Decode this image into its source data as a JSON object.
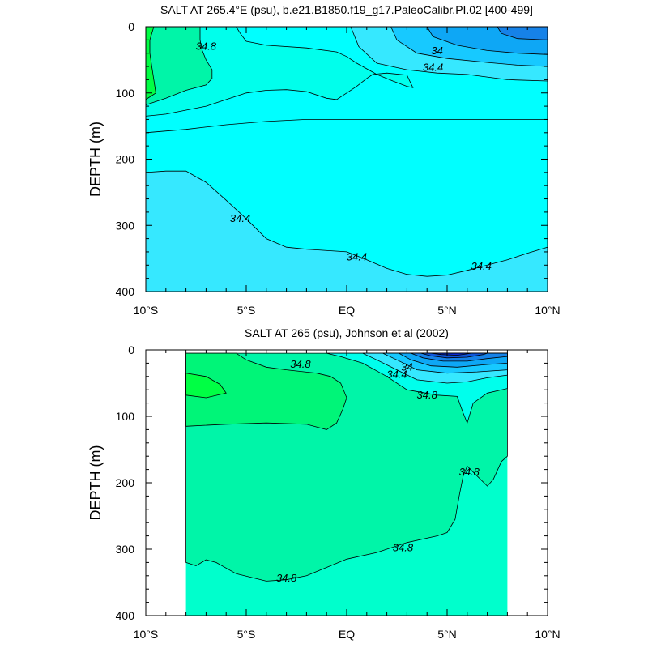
{
  "chart_data": [
    {
      "type": "contour",
      "title": "SALT AT 265.4°E (psu), b.e21.B1850.f19_g17.PaleoCalibr.PI.02 [400-499]",
      "ylabel": "DEPTH (m)",
      "xlabel": "",
      "x_tick_labels": [
        "10°S",
        "5°S",
        "EQ",
        "5°N",
        "10°N"
      ],
      "x_tick_values": [
        -10,
        -5,
        0,
        5,
        10
      ],
      "y_tick_labels": [
        "0",
        "100",
        "200",
        "300",
        "400"
      ],
      "y_tick_values": [
        0,
        100,
        200,
        300,
        400
      ],
      "xlim": [
        -10,
        10
      ],
      "ylim": [
        400,
        0
      ],
      "y_inverted": true,
      "contour_labels": [
        {
          "text": "34.8",
          "lat": -7.0,
          "depth": 30
        },
        {
          "text": "34",
          "lat": 4.5,
          "depth": 37
        },
        {
          "text": "34.4",
          "lat": 4.3,
          "depth": 62
        },
        {
          "text": "34.4",
          "lat": -5.3,
          "depth": 290
        },
        {
          "text": "34.4",
          "lat": 0.5,
          "depth": 348
        },
        {
          "text": "34.4",
          "lat": 6.7,
          "depth": 362
        }
      ],
      "fill_regions": [
        {
          "salinity": 34.4,
          "color": "#36e8ff",
          "polygon": [
            [
              -10,
              220
            ],
            [
              -9,
              218
            ],
            [
              -8,
              218
            ],
            [
              -7,
              235
            ],
            [
              -6,
              262
            ],
            [
              -5,
              290
            ],
            [
              -4,
              320
            ],
            [
              -3,
              333
            ],
            [
              -2,
              336
            ],
            [
              0,
              340
            ],
            [
              1,
              352
            ],
            [
              2,
              365
            ],
            [
              3,
              374
            ],
            [
              4,
              377
            ],
            [
              5,
              375
            ],
            [
              6,
              368
            ],
            [
              7,
              360
            ],
            [
              8,
              352
            ],
            [
              9,
              342
            ],
            [
              10,
              333
            ],
            [
              10,
              400
            ],
            [
              -10,
              400
            ]
          ]
        },
        {
          "salinity": 34.6,
          "color": "#00ffec",
          "polygon": [
            [
              -10,
              135
            ],
            [
              -9,
              132
            ],
            [
              -8,
              126
            ],
            [
              -7,
              120
            ],
            [
              -6,
              110
            ],
            [
              -5,
              100
            ],
            [
              -4,
              96
            ],
            [
              -3,
              95
            ],
            [
              -2,
              98
            ],
            [
              -1,
              108
            ],
            [
              -0.5,
              110
            ],
            [
              0,
              100
            ],
            [
              0.5,
              90
            ],
            [
              1,
              78
            ],
            [
              1.3,
              72
            ],
            [
              2,
              70
            ],
            [
              3,
              73
            ],
            [
              3.2,
              86
            ],
            [
              3.3,
              92
            ],
            [
              3.0,
              90
            ],
            [
              2.3,
              82
            ],
            [
              1.5,
              72
            ],
            [
              0.5,
              55
            ],
            [
              0,
              45
            ],
            [
              -0.5,
              38
            ],
            [
              -2,
              32
            ],
            [
              -4,
              28
            ],
            [
              -5,
              22
            ],
            [
              -5.3,
              10
            ],
            [
              -5.5,
              0
            ],
            [
              -10,
              0
            ]
          ]
        },
        {
          "salinity": 34.8,
          "color": "#00f5a8",
          "polygon": [
            [
              -10,
              118
            ],
            [
              -9,
              108
            ],
            [
              -8,
              96
            ],
            [
              -7,
              88
            ],
            [
              -6.7,
              78
            ],
            [
              -6.7,
              65
            ],
            [
              -7,
              50
            ],
            [
              -7.2,
              35
            ],
            [
              -7.3,
              20
            ],
            [
              -7.3,
              0
            ],
            [
              -10,
              0
            ]
          ]
        },
        {
          "salinity": 35.0,
          "color": "#00ff44",
          "polygon": [
            [
              -10,
              110
            ],
            [
              -9.5,
              100
            ],
            [
              -9.6,
              80
            ],
            [
              -9.7,
              60
            ],
            [
              -9.8,
              40
            ],
            [
              -9.8,
              20
            ],
            [
              -9.6,
              0
            ],
            [
              -10,
              0
            ]
          ]
        },
        {
          "salinity": 34.4,
          "color": "#36e8ff",
          "polygon": [
            [
              0.2,
              0
            ],
            [
              0.6,
              30
            ],
            [
              1.5,
              55
            ],
            [
              3,
              65
            ],
            [
              4.5,
              70
            ],
            [
              6,
              72
            ],
            [
              8,
              80
            ],
            [
              10,
              82
            ],
            [
              10,
              0
            ]
          ]
        },
        {
          "salinity": 34.2,
          "color": "#17c9ff",
          "polygon": [
            [
              2.2,
              0
            ],
            [
              2.5,
              20
            ],
            [
              3.5,
              40
            ],
            [
              5,
              48
            ],
            [
              7,
              54
            ],
            [
              8.5,
              58
            ],
            [
              10,
              60
            ],
            [
              10,
              0
            ]
          ]
        },
        {
          "salinity": 34.0,
          "color": "#0ea7f5",
          "polygon": [
            [
              4,
              0
            ],
            [
              4.3,
              15
            ],
            [
              5.5,
              28
            ],
            [
              7,
              36
            ],
            [
              8.5,
              40
            ],
            [
              10,
              42
            ],
            [
              10,
              0
            ]
          ]
        },
        {
          "salinity": 33.8,
          "color": "#1682e8",
          "polygon": [
            [
              7.5,
              0
            ],
            [
              7.7,
              10
            ],
            [
              8.5,
              18
            ],
            [
              10,
              20
            ],
            [
              10,
              0
            ]
          ]
        }
      ],
      "extra_lines": [
        [
          [
            -10,
            160
          ],
          [
            -8,
            155
          ],
          [
            -6,
            148
          ],
          [
            -4,
            143
          ],
          [
            -2,
            140
          ],
          [
            0,
            140
          ],
          [
            2,
            140
          ],
          [
            4,
            140
          ],
          [
            6,
            140
          ],
          [
            8,
            140
          ],
          [
            10,
            140
          ]
        ]
      ]
    },
    {
      "type": "contour",
      "title": "SALT AT 265 (psu), Johnson et al (2002)",
      "ylabel": "DEPTH (m)",
      "xlabel": "",
      "x_tick_labels": [
        "10°S",
        "5°S",
        "EQ",
        "5°N",
        "10°N"
      ],
      "x_tick_values": [
        -10,
        -5,
        0,
        5,
        10
      ],
      "y_tick_labels": [
        "0",
        "100",
        "200",
        "300",
        "400"
      ],
      "y_tick_values": [
        0,
        100,
        200,
        300,
        400
      ],
      "xlim": [
        -10,
        10
      ],
      "ylim": [
        400,
        0
      ],
      "y_inverted": true,
      "data_extent": {
        "lat": [
          -8,
          8
        ],
        "depth": [
          5,
          400
        ]
      },
      "contour_labels": [
        {
          "text": "34.8",
          "lat": -2.3,
          "depth": 22
        },
        {
          "text": "34",
          "lat": 3.0,
          "depth": 26
        },
        {
          "text": "34.4",
          "lat": 2.5,
          "depth": 37
        },
        {
          "text": "34.8",
          "lat": 4.0,
          "depth": 68
        },
        {
          "text": "34.8",
          "lat": 6.1,
          "depth": 184
        },
        {
          "text": "34.8",
          "lat": 2.8,
          "depth": 298
        },
        {
          "text": "34.8",
          "lat": -3.0,
          "depth": 344
        }
      ],
      "fill_regions": [
        {
          "salinity": 34.9,
          "color": "#00f5a8",
          "polygon": [
            [
              -8,
              320
            ],
            [
              -7.5,
              325
            ],
            [
              -7,
              316
            ],
            [
              -6.5,
              320
            ],
            [
              -5.5,
              337
            ],
            [
              -4,
              348
            ],
            [
              -3,
              346
            ],
            [
              -2,
              340
            ],
            [
              0,
              315
            ],
            [
              1.5,
              305
            ],
            [
              3,
              290
            ],
            [
              4.5,
              280
            ],
            [
              5,
              275
            ],
            [
              5.4,
              255
            ],
            [
              5.6,
              220
            ],
            [
              5.8,
              190
            ],
            [
              6,
              175
            ],
            [
              6.5,
              190
            ],
            [
              7,
              205
            ],
            [
              7.3,
              195
            ],
            [
              7.7,
              168
            ],
            [
              8,
              160
            ],
            [
              8,
              5
            ],
            [
              -8,
              5
            ]
          ]
        },
        {
          "salinity": 35.0,
          "color": "#00f578",
          "polygon": [
            [
              -8,
              115
            ],
            [
              -6,
              112
            ],
            [
              -4,
              110
            ],
            [
              -2,
              112
            ],
            [
              -1,
              120
            ],
            [
              -0.5,
              110
            ],
            [
              -0.2,
              90
            ],
            [
              0,
              72
            ],
            [
              -0.3,
              50
            ],
            [
              -0.8,
              40
            ],
            [
              -1.5,
              35
            ],
            [
              -3,
              30
            ],
            [
              -4,
              26
            ],
            [
              -5,
              15
            ],
            [
              -5.5,
              5
            ],
            [
              -8,
              5
            ]
          ]
        },
        {
          "salinity": 35.1,
          "color": "#00ff44",
          "polygon": [
            [
              -8,
              68
            ],
            [
              -7,
              72
            ],
            [
              -6,
              65
            ],
            [
              -6.3,
              52
            ],
            [
              -7,
              40
            ],
            [
              -8,
              35
            ]
          ]
        },
        {
          "salinity": 34.6,
          "color": "#00ffec",
          "polygon": [
            [
              -1,
              5
            ],
            [
              -0.3,
              10
            ],
            [
              0.8,
              20
            ],
            [
              2,
              40
            ],
            [
              3,
              60
            ],
            [
              4.5,
              68
            ],
            [
              5.5,
              70
            ],
            [
              5.8,
              95
            ],
            [
              6,
              110
            ],
            [
              6.3,
              80
            ],
            [
              7,
              65
            ],
            [
              8,
              58
            ],
            [
              8,
              5
            ]
          ]
        },
        {
          "salinity": 34.4,
          "color": "#36e8ff",
          "polygon": [
            [
              0.8,
              5
            ],
            [
              1.5,
              15
            ],
            [
              2.5,
              30
            ],
            [
              3.5,
              45
            ],
            [
              5,
              50
            ],
            [
              6,
              48
            ],
            [
              7,
              42
            ],
            [
              8,
              38
            ],
            [
              8,
              5
            ]
          ]
        },
        {
          "salinity": 34.2,
          "color": "#17c9ff",
          "polygon": [
            [
              1.8,
              5
            ],
            [
              2.5,
              15
            ],
            [
              3.5,
              30
            ],
            [
              5,
              35
            ],
            [
              6.5,
              33
            ],
            [
              8,
              30
            ],
            [
              8,
              5
            ]
          ]
        },
        {
          "salinity": 34.0,
          "color": "#0ea7f5",
          "polygon": [
            [
              2.6,
              5
            ],
            [
              3.2,
              15
            ],
            [
              4.2,
              24
            ],
            [
              5.5,
              26
            ],
            [
              7,
              22
            ],
            [
              8,
              20
            ],
            [
              8,
              5
            ]
          ]
        },
        {
          "salinity": 33.8,
          "color": "#1682e8",
          "polygon": [
            [
              3.2,
              5
            ],
            [
              3.8,
              12
            ],
            [
              4.8,
              17
            ],
            [
              6,
              17
            ],
            [
              7,
              13
            ],
            [
              8,
              10
            ],
            [
              8,
              5
            ]
          ]
        },
        {
          "salinity": 33.6,
          "color": "#0f55db",
          "polygon": [
            [
              3.7,
              5
            ],
            [
              4.2,
              9
            ],
            [
              5,
              12
            ],
            [
              6,
              11
            ],
            [
              6.8,
              7
            ],
            [
              7,
              5
            ]
          ]
        },
        {
          "salinity": 33.4,
          "color": "#0c2bd8",
          "polygon": [
            [
              4.2,
              5
            ],
            [
              4.7,
              7
            ],
            [
              5.5,
              8
            ],
            [
              6.2,
              5
            ]
          ]
        }
      ],
      "extra_lines": []
    }
  ]
}
